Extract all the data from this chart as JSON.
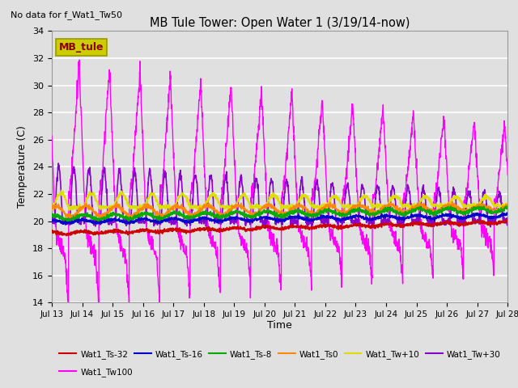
{
  "title": "MB Tule Tower: Open Water 1 (3/19/14-now)",
  "no_data_text": "No data for f_Wat1_Tw50",
  "xlabel": "Time",
  "ylabel": "Temperature (C)",
  "ylim": [
    14,
    34
  ],
  "yticks": [
    14,
    16,
    18,
    20,
    22,
    24,
    26,
    28,
    30,
    32,
    34
  ],
  "x_start": 13,
  "x_end": 28,
  "xtick_labels": [
    "Jul 13",
    "Jul 14",
    "Jul 15",
    "Jul 16",
    "Jul 17",
    "Jul 18",
    "Jul 19",
    "Jul 20",
    "Jul 21",
    "Jul 22",
    "Jul 23",
    "Jul 24",
    "Jul 25",
    "Jul 26",
    "Jul 27",
    "Jul 28"
  ],
  "xtick_positions": [
    13,
    14,
    15,
    16,
    17,
    18,
    19,
    20,
    21,
    22,
    23,
    24,
    25,
    26,
    27,
    28
  ],
  "background_color": "#e0e0e0",
  "plot_bg_color": "#e0e0e0",
  "grid_color": "#ffffff",
  "legend_box_color": "#cccc00",
  "legend_box_text": "MB_tule",
  "legend_box_text_color": "#880000",
  "colors": {
    "Wat1_Ts-32": "#cc0000",
    "Wat1_Ts-16": "#0000cc",
    "Wat1_Ts-8": "#00aa00",
    "Wat1_Ts0": "#ff8800",
    "Wat1_Tw+10": "#dddd00",
    "Wat1_Tw+30": "#8800cc",
    "Wat1_Tw100": "#ff00ff"
  },
  "legend_entries": [
    {
      "label": "Wat1_Ts-32",
      "color": "#cc0000"
    },
    {
      "label": "Wat1_Ts-16",
      "color": "#0000cc"
    },
    {
      "label": "Wat1_Ts-8",
      "color": "#00aa00"
    },
    {
      "label": "Wat1_Ts0",
      "color": "#ff8800"
    },
    {
      "label": "Wat1_Tw+10",
      "color": "#dddd00"
    },
    {
      "label": "Wat1_Tw+30",
      "color": "#8800cc"
    },
    {
      "label": "Wat1_Tw100",
      "color": "#ff00ff"
    }
  ]
}
